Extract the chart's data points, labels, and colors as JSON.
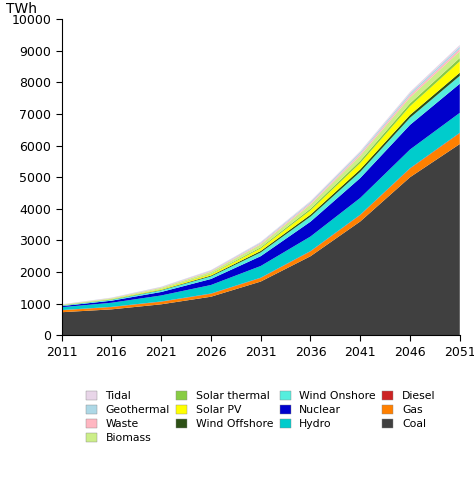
{
  "years": [
    2011,
    2016,
    2021,
    2026,
    2031,
    2036,
    2041,
    2046,
    2051
  ],
  "ylabel": "TWh",
  "ylim": [
    0,
    10000
  ],
  "yticks": [
    0,
    1000,
    2000,
    3000,
    4000,
    5000,
    6000,
    7000,
    8000,
    9000,
    10000
  ],
  "xlim": [
    2011,
    2051
  ],
  "xticks": [
    2011,
    2016,
    2021,
    2026,
    2031,
    2036,
    2041,
    2046,
    2051
  ],
  "layers_order": [
    "Coal",
    "Gas",
    "Diesel",
    "Hydro",
    "Nuclear",
    "Wind Onshore",
    "Wind Offshore",
    "Solar PV",
    "Solar thermal",
    "Biomass",
    "Waste",
    "Geothermal",
    "Tidal"
  ],
  "layers": {
    "Coal": {
      "color": "#404040",
      "values": [
        730,
        820,
        980,
        1220,
        1700,
        2500,
        3600,
        5000,
        6050
      ]
    },
    "Gas": {
      "color": "#FF8000",
      "values": [
        60,
        70,
        80,
        90,
        110,
        150,
        200,
        270,
        340
      ]
    },
    "Diesel": {
      "color": "#CC2222",
      "values": [
        8,
        9,
        10,
        11,
        12,
        14,
        15,
        16,
        17
      ]
    },
    "Hydro": {
      "color": "#00CCCC",
      "values": [
        90,
        130,
        190,
        270,
        370,
        460,
        530,
        590,
        630
      ]
    },
    "Nuclear": {
      "color": "#0000CC",
      "values": [
        35,
        65,
        110,
        190,
        310,
        470,
        630,
        780,
        920
      ]
    },
    "Wind Onshore": {
      "color": "#55EEDD",
      "values": [
        18,
        30,
        50,
        80,
        120,
        160,
        195,
        225,
        250
      ]
    },
    "Wind Offshore": {
      "color": "#2D5016",
      "values": [
        4,
        8,
        15,
        28,
        45,
        62,
        78,
        90,
        100
      ]
    },
    "Solar PV": {
      "color": "#FFFF00",
      "values": [
        4,
        10,
        22,
        45,
        82,
        135,
        200,
        275,
        360
      ]
    },
    "Solar thermal": {
      "color": "#88CC44",
      "values": [
        3,
        5,
        10,
        20,
        35,
        55,
        74,
        90,
        105
      ]
    },
    "Biomass": {
      "color": "#CCEE88",
      "values": [
        14,
        22,
        36,
        58,
        92,
        128,
        160,
        188,
        212
      ]
    },
    "Waste": {
      "color": "#FFB6C1",
      "values": [
        7,
        11,
        16,
        24,
        35,
        48,
        60,
        70,
        78
      ]
    },
    "Geothermal": {
      "color": "#ADD8E6",
      "values": [
        5,
        8,
        12,
        18,
        28,
        40,
        51,
        60,
        68
      ]
    },
    "Tidal": {
      "color": "#E8D5E8",
      "values": [
        2,
        4,
        6,
        11,
        18,
        27,
        36,
        46,
        56
      ]
    }
  },
  "legend_order": [
    "Tidal",
    "Geothermal",
    "Waste",
    "Biomass",
    "Solar thermal",
    "Solar PV",
    "Wind Offshore",
    "Wind Onshore",
    "Nuclear",
    "Hydro",
    "Diesel",
    "Gas",
    "Coal"
  ]
}
